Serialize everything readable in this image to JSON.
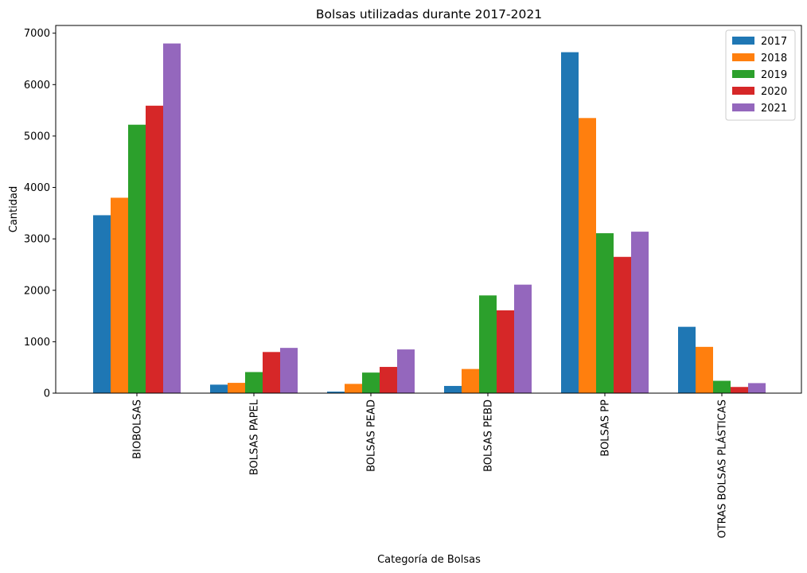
{
  "chart_data": {
    "type": "bar",
    "title": "Bolsas utilizadas durante 2017-2021",
    "xlabel": "Categoría de Bolsas",
    "ylabel": "Cantidad",
    "ylim": [
      0,
      7150
    ],
    "yticks": [
      0,
      1000,
      2000,
      3000,
      4000,
      5000,
      6000,
      7000
    ],
    "grid": false,
    "legend_position": "top-right",
    "categories": [
      "BIOBOLSAS",
      "BOLSAS PAPEL",
      "BOLSAS PEAD",
      "BOLSAS PEBD",
      "BOLSAS PP",
      "OTRAS BOLSAS PLÁSTICAS"
    ],
    "series": [
      {
        "name": "2017",
        "color": "#1f77b4",
        "values": [
          3460,
          165,
          30,
          140,
          6630,
          1290
        ]
      },
      {
        "name": "2018",
        "color": "#ff7f0e",
        "values": [
          3800,
          200,
          180,
          470,
          5350,
          900
        ]
      },
      {
        "name": "2019",
        "color": "#2ca02c",
        "values": [
          5220,
          410,
          400,
          1900,
          3110,
          240
        ]
      },
      {
        "name": "2020",
        "color": "#d62728",
        "values": [
          5590,
          800,
          510,
          1610,
          2650,
          120
        ]
      },
      {
        "name": "2021",
        "color": "#9467bd",
        "values": [
          6800,
          880,
          850,
          2110,
          3140,
          195
        ]
      }
    ]
  }
}
